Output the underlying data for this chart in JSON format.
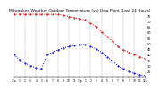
{
  "title": "Milwaukee Weather Outdoor Temperature (vs) Dew Point (Last 24 Hours)",
  "title_fontsize": 3.2,
  "background_color": "#ffffff",
  "plot_background": "#ffffff",
  "temp_color": "#cc0000",
  "dew_color": "#0000cc",
  "ylim": [
    20,
    78
  ],
  "yticks": [
    25,
    30,
    35,
    40,
    45,
    50,
    55,
    60,
    65,
    70,
    75
  ],
  "ytick_fontsize": 2.5,
  "xtick_fontsize": 2.2,
  "x_hours": [
    0,
    1,
    2,
    3,
    4,
    5,
    6,
    7,
    8,
    9,
    10,
    11,
    12,
    13,
    14,
    15,
    16,
    17,
    18,
    19,
    20,
    21,
    22,
    23,
    24
  ],
  "temp_values": [
    76,
    76,
    76,
    76,
    76,
    76,
    76,
    76,
    76,
    75,
    74,
    73,
    72,
    71,
    68,
    65,
    60,
    56,
    52,
    47,
    44,
    42,
    40,
    38,
    36
  ],
  "dew_values": [
    40,
    35,
    32,
    30,
    28,
    27,
    40,
    42,
    44,
    46,
    47,
    48,
    49,
    49,
    47,
    45,
    42,
    38,
    34,
    30,
    27,
    25,
    23,
    22,
    21
  ],
  "grid_color": "#999999",
  "grid_linestyle": "--",
  "grid_linewidth": 0.3,
  "grid_x_positions": [
    0,
    2,
    4,
    6,
    8,
    10,
    12,
    14,
    16,
    18,
    20,
    22,
    24
  ],
  "hour_labels": [
    "12a",
    "1",
    "2",
    "3",
    "4",
    "5",
    "6",
    "7",
    "8",
    "9",
    "10",
    "11",
    "12p",
    "1",
    "2",
    "3",
    "4",
    "5",
    "6",
    "7",
    "8",
    "9",
    "10",
    "11",
    "12a"
  ],
  "marker_size": 1.0,
  "line_width": 0.7
}
